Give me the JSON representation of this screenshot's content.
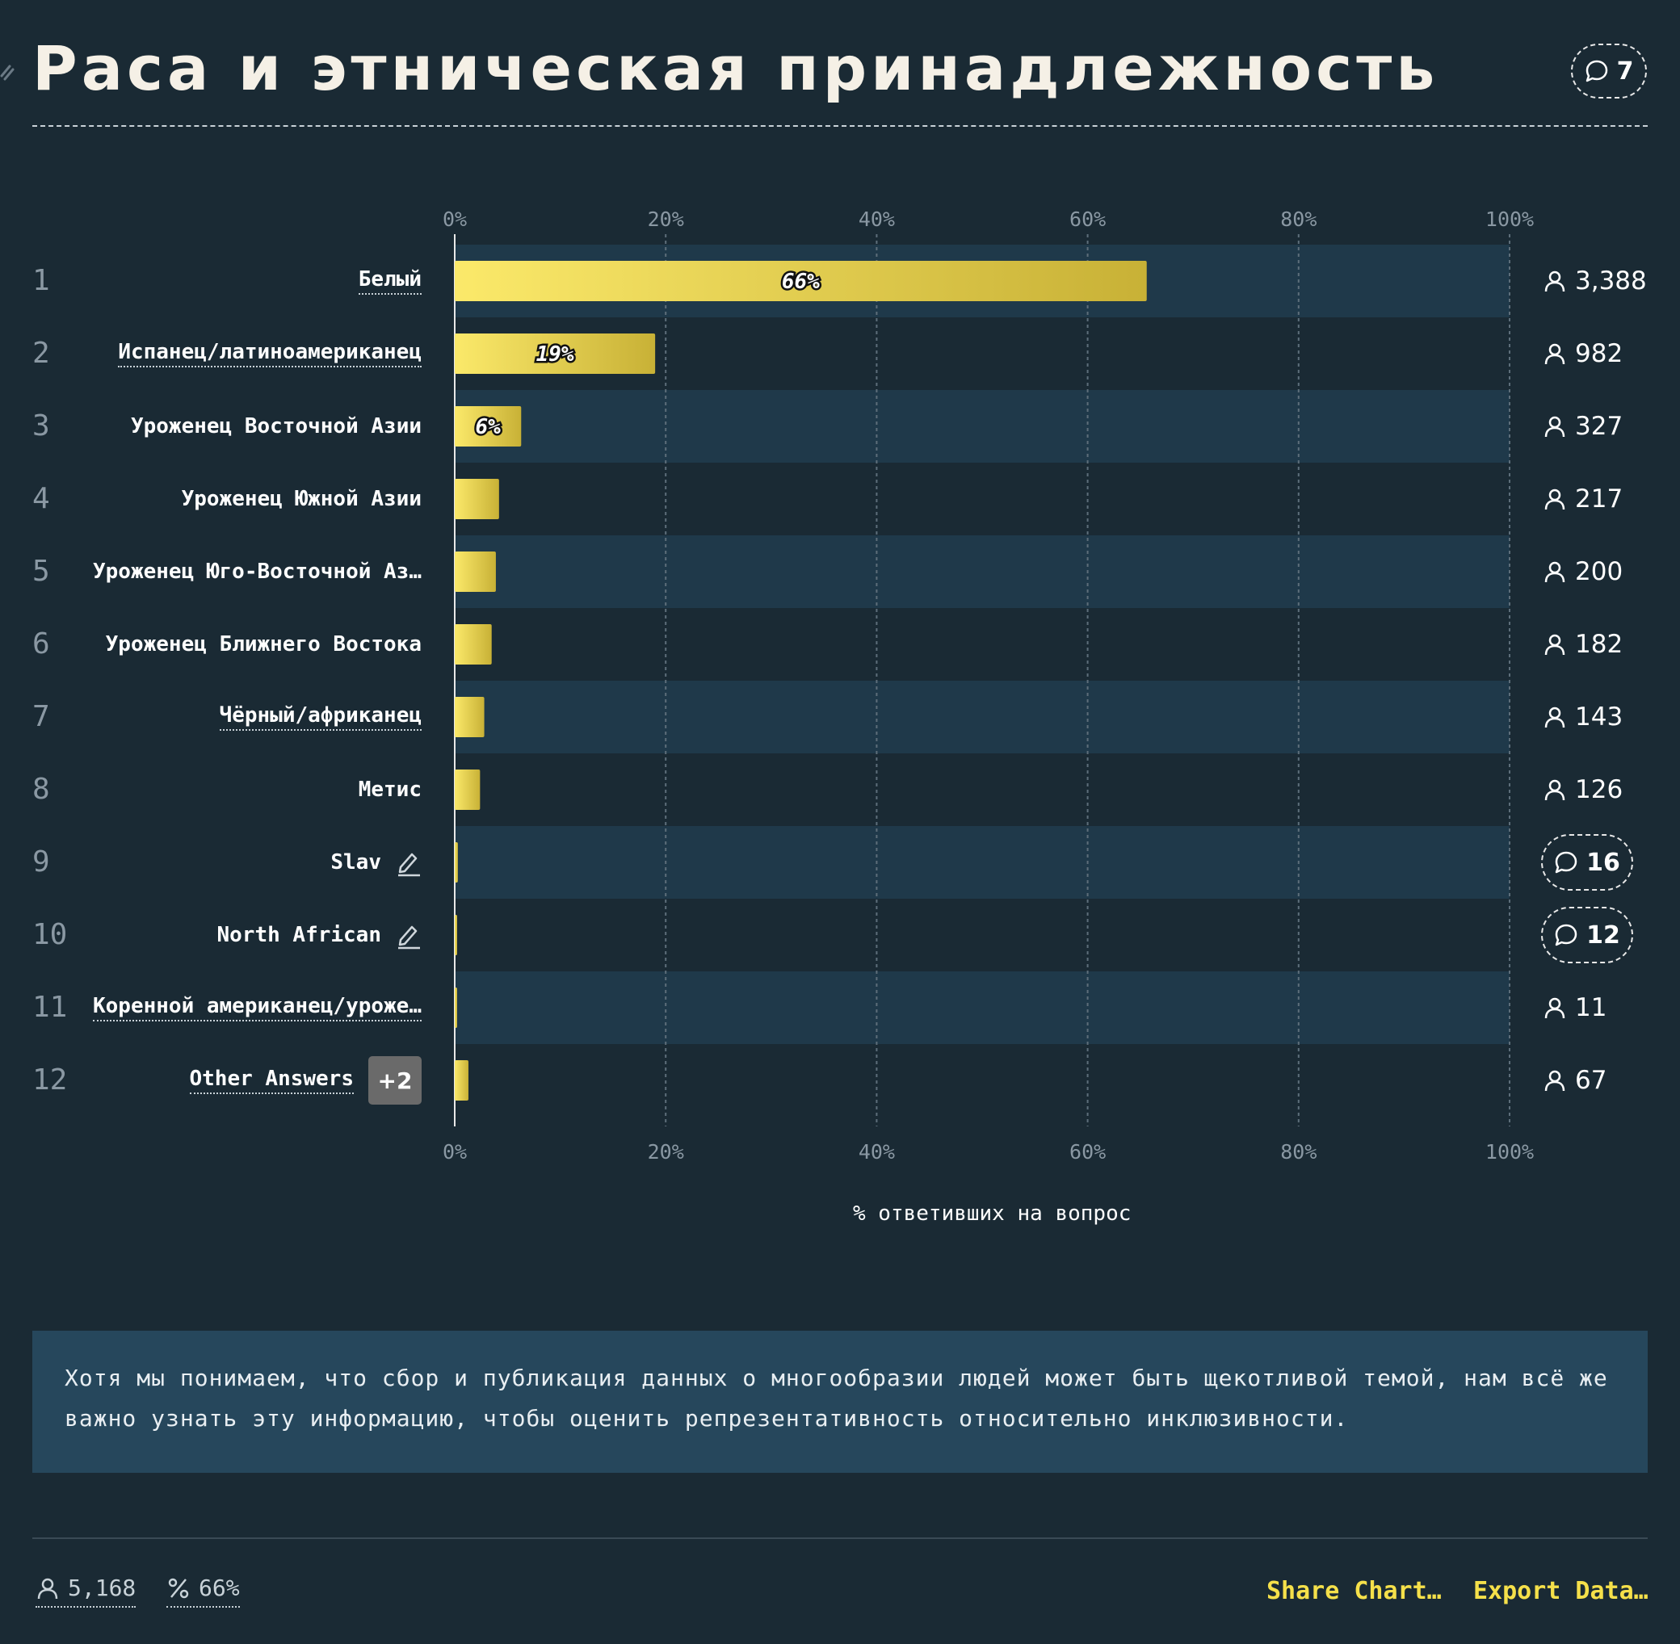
{
  "title": "Раса и этническая принадлежность",
  "title_comments": "7",
  "colors": {
    "background": "#1a2a34",
    "band": "#1f394a",
    "bar_start": "#fbe96a",
    "bar_end": "#c8b136",
    "accent": "#f5e04a",
    "note_bg": "#26475c"
  },
  "chart_data": {
    "type": "bar",
    "orientation": "horizontal",
    "categories": [
      "Белый",
      "Испанец/латиноамериканец",
      "Уроженец Восточной Азии",
      "Уроженец Южной Азии",
      "Уроженец Юго-Восточной Аз…",
      "Уроженец Ближнего Востока",
      "Чёрный/африканец",
      "Метис",
      "Slav",
      "North African",
      "Коренной американец/уроже…",
      "Other Answers"
    ],
    "values": [
      65.6,
      19.0,
      6.3,
      4.2,
      3.9,
      3.5,
      2.8,
      2.4,
      0.3,
      0.2,
      0.2,
      1.3
    ],
    "bar_labels": [
      "66%",
      "19%",
      "6%",
      "",
      "",
      "",
      "",
      "",
      "",
      "",
      "",
      ""
    ],
    "xlim": [
      0,
      100
    ],
    "x_ticks": [
      "0%",
      "20%",
      "40%",
      "60%",
      "80%",
      "100%"
    ],
    "xlabel": "% ответивших на вопрос",
    "grid": true
  },
  "rows": [
    {
      "rank": "1",
      "label": "Белый",
      "underline": true,
      "count": "3,388"
    },
    {
      "rank": "2",
      "label": "Испанец/латиноамериканец",
      "underline": true,
      "count": "982"
    },
    {
      "rank": "3",
      "label": "Уроженец Восточной Азии",
      "underline": false,
      "count": "327"
    },
    {
      "rank": "4",
      "label": "Уроженец Южной Азии",
      "underline": false,
      "count": "217"
    },
    {
      "rank": "5",
      "label": "Уроженец Юго-Восточной Аз…",
      "underline": false,
      "count": "200"
    },
    {
      "rank": "6",
      "label": "Уроженец Ближнего Востока",
      "underline": false,
      "count": "182"
    },
    {
      "rank": "7",
      "label": "Чёрный/африканец",
      "underline": true,
      "count": "143"
    },
    {
      "rank": "8",
      "label": "Метис",
      "underline": false,
      "count": "126"
    },
    {
      "rank": "9",
      "label": "Slav",
      "underline": false,
      "editable": true,
      "comments": "16"
    },
    {
      "rank": "10",
      "label": "North African",
      "underline": false,
      "editable": true,
      "comments": "12"
    },
    {
      "rank": "11",
      "label": "Коренной американец/уроже…",
      "underline": true,
      "count": "11"
    },
    {
      "rank": "12",
      "label": "Other Answers",
      "underline": true,
      "more": "+2",
      "count": "67"
    }
  ],
  "note": "Хотя мы понимаем, что сбор и публикация данных о многообразии людей может быть щекотливой темой, нам всё же важно узнать эту информацию, чтобы оценить репрезентативность относительно инклюзивности.",
  "footer": {
    "respondents": "5,168",
    "percent": "66%",
    "share_label": "Share Chart…",
    "export_label": "Export Data…"
  }
}
